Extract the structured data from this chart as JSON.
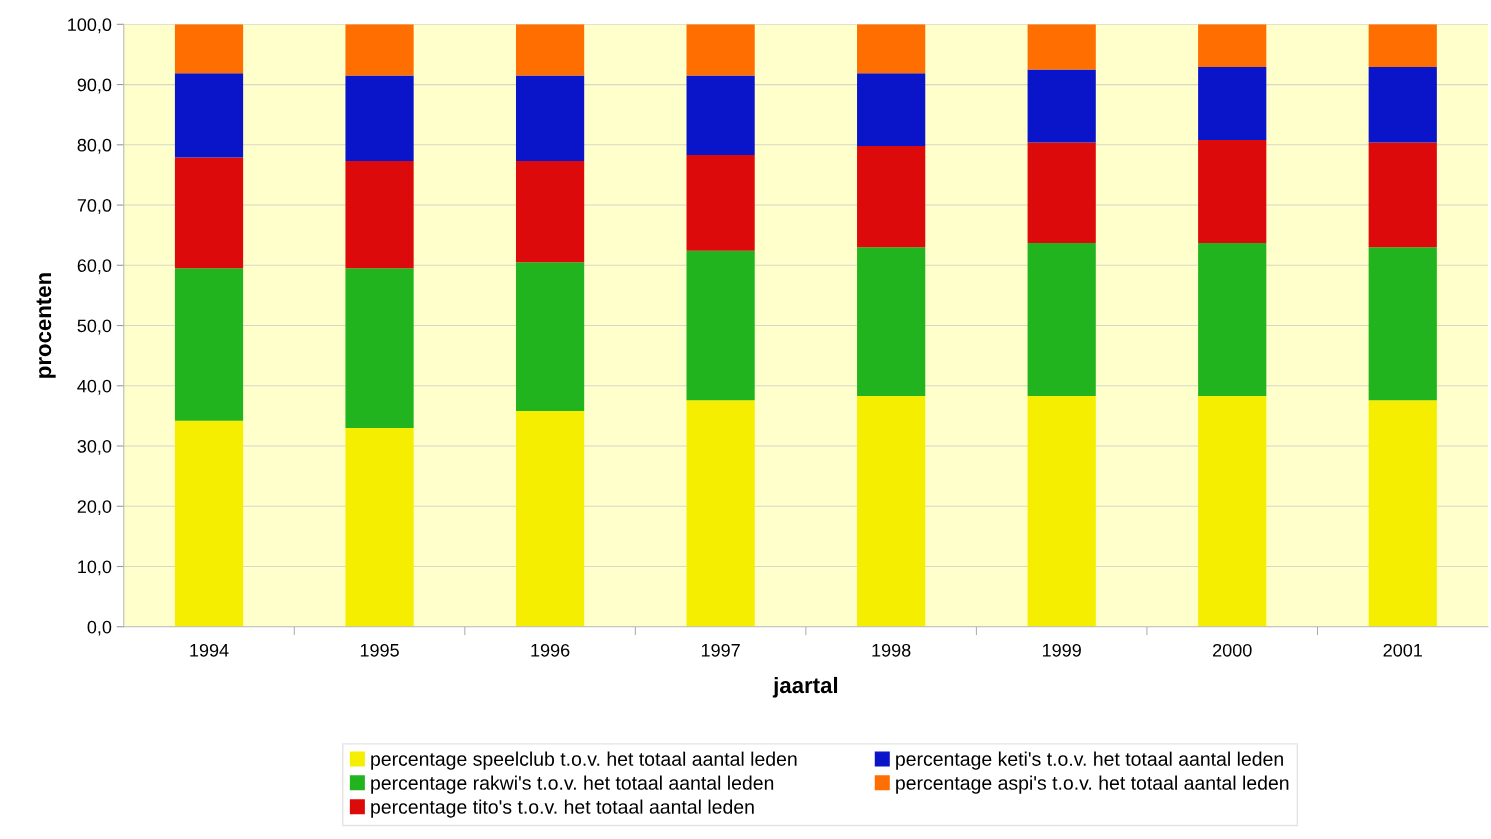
{
  "chart_data": {
    "type": "bar",
    "stacked": true,
    "xlabel": "jaartal",
    "ylabel": "procenten",
    "categories": [
      "1994",
      "1995",
      "1996",
      "1997",
      "1998",
      "1999",
      "2000",
      "2001"
    ],
    "series": [
      {
        "name": "percentage speelclub t.o.v. het totaal aantal leden",
        "color": "#f5ee00",
        "values": [
          34.2,
          33.0,
          35.8,
          37.6,
          38.3,
          38.3,
          38.3,
          37.6
        ]
      },
      {
        "name": "percentage rakwi's t.o.v. het totaal aantal leden",
        "color": "#22b41e",
        "values": [
          25.3,
          26.5,
          24.7,
          24.8,
          24.7,
          25.4,
          25.4,
          25.4
        ]
      },
      {
        "name": "percentage tito's t.o.v. het totaal aantal leden",
        "color": "#dc0a0a",
        "values": [
          18.4,
          17.8,
          16.8,
          15.9,
          16.8,
          16.7,
          17.1,
          17.4
        ]
      },
      {
        "name": "percentage keti's t.o.v. het totaal aantal leden",
        "color": "#0a14c8",
        "values": [
          14.0,
          14.2,
          14.2,
          13.2,
          12.1,
          12.1,
          12.1,
          12.5
        ]
      },
      {
        "name": "percentage aspi's t.o.v. het totaal aantal leden",
        "color": "#ff6e00",
        "values": [
          8.1,
          8.5,
          8.5,
          8.5,
          8.1,
          7.5,
          7.1,
          7.1
        ]
      }
    ],
    "ylim": [
      0,
      100
    ],
    "yticks": [
      {
        "value": 0,
        "label": "0,0"
      },
      {
        "value": 10,
        "label": "10,0"
      },
      {
        "value": 20,
        "label": "20,0"
      },
      {
        "value": 30,
        "label": "30,0"
      },
      {
        "value": 40,
        "label": "40,0"
      },
      {
        "value": 50,
        "label": "50,0"
      },
      {
        "value": 60,
        "label": "60,0"
      },
      {
        "value": 70,
        "label": "70,0"
      },
      {
        "value": 80,
        "label": "80,0"
      },
      {
        "value": 90,
        "label": "90,0"
      },
      {
        "value": 100,
        "label": "100,0"
      }
    ],
    "grid": "y",
    "legend": "bottom"
  }
}
